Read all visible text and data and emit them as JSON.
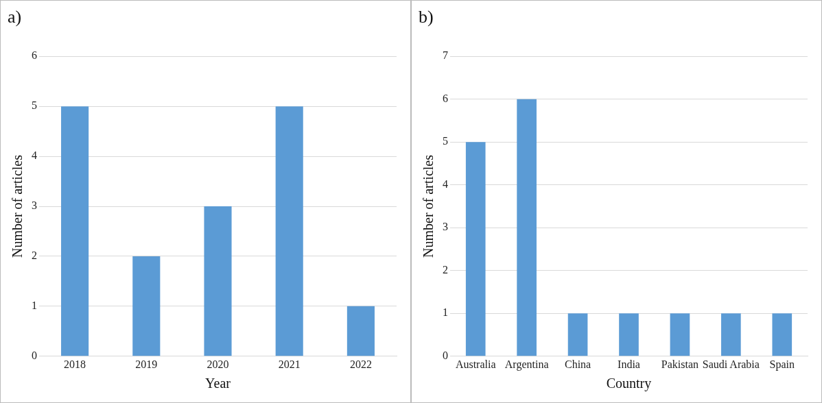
{
  "chart_data": [
    {
      "type": "bar",
      "title": "a)",
      "xlabel": "Year",
      "ylabel": "Number of articles",
      "categories": [
        "2018",
        "2019",
        "2020",
        "2021",
        "2022"
      ],
      "values": [
        5,
        2,
        3,
        5,
        1
      ],
      "color": "#5b9bd5",
      "ylim": [
        0,
        6
      ],
      "yticks": [
        0,
        1,
        2,
        3,
        4,
        5,
        6
      ],
      "grid": "y"
    },
    {
      "type": "bar",
      "title": "b)",
      "xlabel": "Country",
      "ylabel": "Number of articles",
      "categories": [
        "Australia",
        "Argentina",
        "China",
        "India",
        "Pakistan",
        "Saudi Arabia",
        "Spain"
      ],
      "values": [
        5,
        6,
        1,
        1,
        1,
        1,
        1
      ],
      "color": "#5b9bd5",
      "ylim": [
        0,
        7
      ],
      "yticks": [
        0,
        1,
        2,
        3,
        4,
        5,
        6,
        7
      ],
      "grid": "y"
    }
  ]
}
